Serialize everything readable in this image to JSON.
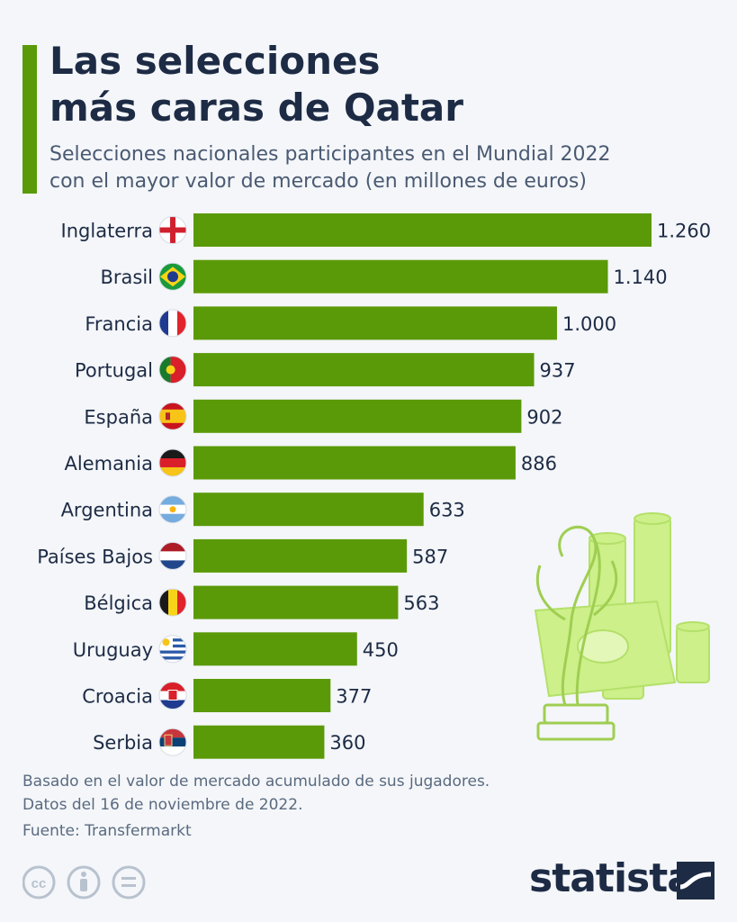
{
  "title_line1": "Las selecciones",
  "title_line2": "más caras de Qatar",
  "subtitle_line1": "Selecciones nacionales participantes en el Mundial 2022",
  "subtitle_line2": "con el mayor valor de mercado (en millones de euros)",
  "footnote_line1": "Basado en el valor de mercado acumulado de sus jugadores.",
  "footnote_line2": "Datos del 16 de noviembre de 2022.",
  "source": "Fuente: Transfermarkt",
  "brand": "statista",
  "colors": {
    "bar": "#5a9a08",
    "text": "#1d2b45",
    "background": "#f4f6f9",
    "decoration": "#cdf08a"
  },
  "chart_data": {
    "type": "bar",
    "orientation": "horizontal",
    "categories": [
      "Inglaterra",
      "Brasil",
      "Francia",
      "Portugal",
      "España",
      "Alemania",
      "Argentina",
      "Países Bajos",
      "Bélgica",
      "Uruguay",
      "Croacia",
      "Serbia"
    ],
    "values": [
      1260,
      1140,
      1000,
      937,
      902,
      886,
      633,
      587,
      563,
      450,
      377,
      360
    ],
    "value_labels": [
      "1.260",
      "1.140",
      "1.000",
      "937",
      "902",
      "886",
      "633",
      "587",
      "563",
      "450",
      "377",
      "360"
    ],
    "flags": [
      "england-flag-icon",
      "brazil-flag-icon",
      "france-flag-icon",
      "portugal-flag-icon",
      "spain-flag-icon",
      "germany-flag-icon",
      "argentina-flag-icon",
      "netherlands-flag-icon",
      "belgium-flag-icon",
      "uruguay-flag-icon",
      "croatia-flag-icon",
      "serbia-flag-icon"
    ],
    "xlim": [
      0,
      1260
    ],
    "grid": false,
    "legend": "none"
  }
}
